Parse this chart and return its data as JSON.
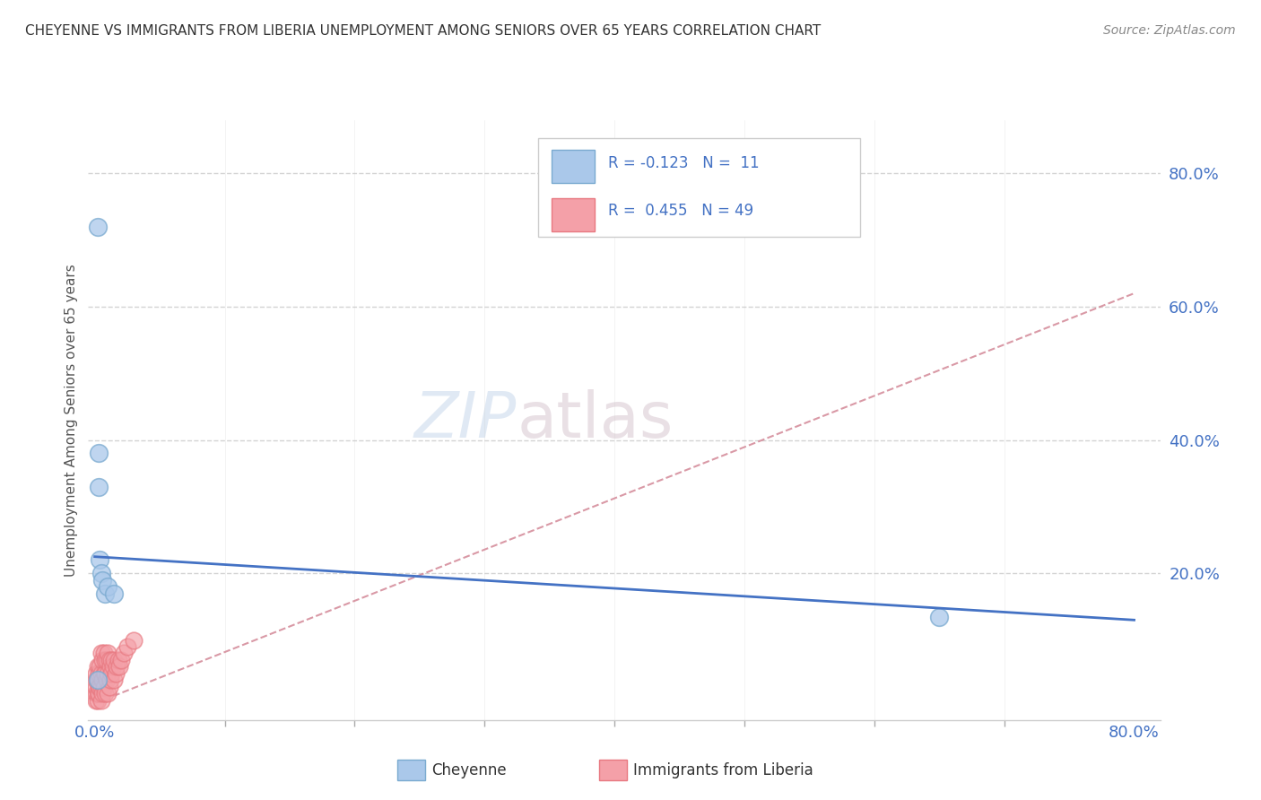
{
  "title": "CHEYENNE VS IMMIGRANTS FROM LIBERIA UNEMPLOYMENT AMONG SENIORS OVER 65 YEARS CORRELATION CHART",
  "source": "Source: ZipAtlas.com",
  "ylabel": "Unemployment Among Seniors over 65 years",
  "legend_r1": "R = -0.123",
  "legend_n1": "N =  11",
  "legend_r2": "R =  0.455",
  "legend_n2": "N = 49",
  "cheyenne_color": "#aac8ea",
  "cheyenne_edge": "#7aaad0",
  "liberia_color": "#f4a0a8",
  "liberia_edge": "#e87880",
  "trend_blue": "#4472c4",
  "trend_pink": "#d08090",
  "text_color": "#4472c4",
  "legend_text_color": "#4472c4",
  "watermark_color": "#c8d8ec",
  "watermark_color2": "#d8c8d0",
  "cheyenne_x": [
    0.002,
    0.002,
    0.003,
    0.003,
    0.004,
    0.005,
    0.006,
    0.008,
    0.01,
    0.015,
    0.65
  ],
  "cheyenne_y": [
    0.72,
    0.04,
    0.38,
    0.33,
    0.22,
    0.2,
    0.19,
    0.17,
    0.18,
    0.17,
    0.135
  ],
  "liberia_x": [
    0.001,
    0.001,
    0.001,
    0.001,
    0.001,
    0.002,
    0.002,
    0.002,
    0.002,
    0.003,
    0.003,
    0.003,
    0.004,
    0.004,
    0.005,
    0.005,
    0.005,
    0.005,
    0.006,
    0.006,
    0.006,
    0.007,
    0.007,
    0.007,
    0.008,
    0.008,
    0.008,
    0.009,
    0.009,
    0.01,
    0.01,
    0.01,
    0.011,
    0.011,
    0.012,
    0.012,
    0.013,
    0.013,
    0.014,
    0.015,
    0.015,
    0.016,
    0.017,
    0.018,
    0.019,
    0.02,
    0.022,
    0.025,
    0.03
  ],
  "liberia_y": [
    0.01,
    0.02,
    0.03,
    0.04,
    0.05,
    0.01,
    0.02,
    0.04,
    0.06,
    0.02,
    0.03,
    0.05,
    0.03,
    0.06,
    0.01,
    0.03,
    0.05,
    0.08,
    0.02,
    0.04,
    0.07,
    0.03,
    0.05,
    0.08,
    0.02,
    0.05,
    0.07,
    0.04,
    0.07,
    0.02,
    0.05,
    0.08,
    0.03,
    0.07,
    0.04,
    0.06,
    0.05,
    0.07,
    0.06,
    0.04,
    0.07,
    0.05,
    0.06,
    0.07,
    0.06,
    0.07,
    0.08,
    0.09,
    0.1
  ],
  "xlim": [
    -0.005,
    0.82
  ],
  "ylim": [
    -0.02,
    0.88
  ],
  "blue_trend_x": [
    0.0,
    0.8
  ],
  "blue_trend_y": [
    0.225,
    0.13
  ],
  "pink_trend_x": [
    0.0,
    0.8
  ],
  "pink_trend_y": [
    0.005,
    0.62
  ],
  "background_color": "#ffffff",
  "grid_color": "#c8c8c8"
}
